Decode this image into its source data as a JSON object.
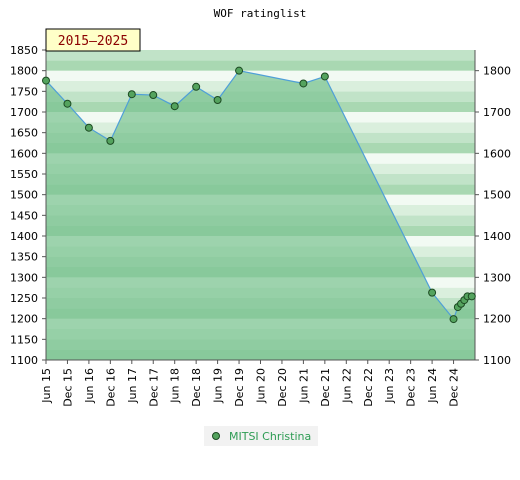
{
  "chart_data": {
    "type": "area",
    "title": "WOF ratinglist",
    "period_label": "2015–2025",
    "ylim": [
      1100,
      1850
    ],
    "left_ticks": [
      1100,
      1150,
      1200,
      1250,
      1300,
      1350,
      1400,
      1450,
      1500,
      1550,
      1600,
      1650,
      1700,
      1750,
      1800,
      1850
    ],
    "right_ticks": [
      1100,
      1200,
      1300,
      1400,
      1500,
      1600,
      1700,
      1800
    ],
    "x_labels": [
      "Jun 15",
      "Dec 15",
      "Jun 16",
      "Dec 16",
      "Jun 17",
      "Dec 17",
      "Jun 18",
      "Dec 18",
      "Jun 19",
      "Dec 19",
      "Jun 20",
      "Dec 20",
      "Jun 21",
      "Dec 21",
      "Jun 22",
      "Dec 22",
      "Jun 23",
      "Dec 23",
      "Jun 24",
      "Dec 24"
    ],
    "x_range": [
      0,
      20
    ],
    "grid": true,
    "legend_position": "bottom-center",
    "series": [
      {
        "name": "MITSI Christina",
        "x": [
          0,
          1,
          2,
          3,
          4,
          5,
          6,
          7,
          8,
          9,
          12,
          13,
          18,
          19,
          19.2,
          19.35,
          19.5,
          19.65,
          19.85
        ],
        "values": [
          1776,
          1720,
          1662,
          1630,
          1743,
          1741,
          1714,
          1761,
          1729,
          1800,
          1769,
          1786,
          1263,
          1199,
          1228,
          1236,
          1245,
          1254,
          1254
        ]
      }
    ],
    "colors": {
      "line": "#4f9fd8",
      "marker": "#54a35e",
      "area": "#7cc392",
      "band_light": "#f2faf3",
      "band_dark": "#a9d8b2"
    }
  }
}
